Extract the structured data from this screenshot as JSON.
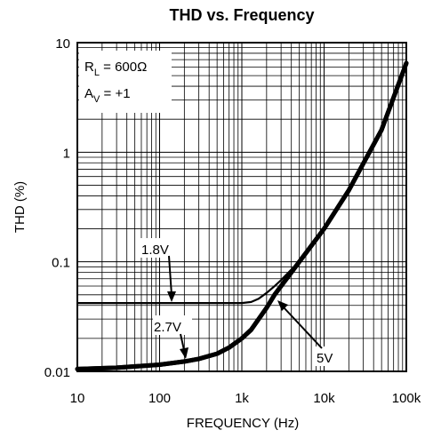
{
  "chart_data": {
    "type": "line",
    "title": "THD vs. Frequency",
    "xlabel": "FREQUENCY (Hz)",
    "ylabel": "THD (%)",
    "x_scale": "log",
    "y_scale": "log",
    "xlim": [
      10,
      100000
    ],
    "ylim": [
      0.01,
      10
    ],
    "grid": true,
    "x_ticks": [
      {
        "value": 10,
        "label": "10"
      },
      {
        "value": 100,
        "label": "100"
      },
      {
        "value": 1000,
        "label": "1k"
      },
      {
        "value": 10000,
        "label": "10k"
      },
      {
        "value": 100000,
        "label": "100k"
      }
    ],
    "y_ticks": [
      {
        "value": 0.01,
        "label": "0.01"
      },
      {
        "value": 0.1,
        "label": "0.1"
      },
      {
        "value": 1,
        "label": "1"
      },
      {
        "value": 10,
        "label": "10"
      }
    ],
    "conditions": {
      "rl": {
        "main": "R",
        "sub": "L",
        "rest": " = 600Ω"
      },
      "av": {
        "main": "A",
        "sub": "V",
        "rest": " = +1"
      }
    },
    "series": [
      {
        "name": "1.8V",
        "color": "#000000",
        "width": "thin",
        "points": [
          [
            10,
            0.042
          ],
          [
            100,
            0.042
          ],
          [
            1000,
            0.042
          ],
          [
            1300,
            0.043
          ],
          [
            1600,
            0.046
          ],
          [
            2000,
            0.052
          ],
          [
            2500,
            0.06
          ],
          [
            3000,
            0.068
          ],
          [
            4000,
            0.085
          ],
          [
            5000,
            0.1
          ],
          [
            7000,
            0.14
          ],
          [
            10000,
            0.2
          ],
          [
            20000,
            0.45
          ],
          [
            50000,
            1.6
          ],
          [
            100000,
            6.5
          ]
        ]
      },
      {
        "name": "2.7V",
        "color": "#000000",
        "width": "thick",
        "points": [
          [
            10,
            0.0105
          ],
          [
            30,
            0.0108
          ],
          [
            100,
            0.0115
          ],
          [
            200,
            0.0123
          ],
          [
            300,
            0.013
          ],
          [
            500,
            0.0145
          ],
          [
            700,
            0.0165
          ],
          [
            1000,
            0.02
          ],
          [
            1300,
            0.024
          ],
          [
            1600,
            0.03
          ],
          [
            2000,
            0.038
          ],
          [
            2500,
            0.05
          ],
          [
            3000,
            0.06
          ],
          [
            4000,
            0.08
          ],
          [
            5000,
            0.1
          ],
          [
            7000,
            0.14
          ],
          [
            10000,
            0.2
          ],
          [
            20000,
            0.45
          ],
          [
            50000,
            1.6
          ],
          [
            100000,
            6.5
          ]
        ]
      },
      {
        "name": "5V",
        "color": "#000000",
        "width": "thick",
        "points": [
          [
            10,
            0.0105
          ],
          [
            30,
            0.0108
          ],
          [
            100,
            0.0115
          ],
          [
            200,
            0.0123
          ],
          [
            300,
            0.013
          ],
          [
            500,
            0.0145
          ],
          [
            700,
            0.0165
          ],
          [
            1000,
            0.02
          ],
          [
            1300,
            0.024
          ],
          [
            1600,
            0.03
          ],
          [
            2000,
            0.038
          ],
          [
            2500,
            0.05
          ],
          [
            3000,
            0.06
          ],
          [
            4000,
            0.08
          ],
          [
            5000,
            0.1
          ],
          [
            7000,
            0.14
          ],
          [
            10000,
            0.2
          ],
          [
            20000,
            0.45
          ],
          [
            50000,
            1.6
          ],
          [
            100000,
            6.5
          ]
        ]
      }
    ],
    "annotations": [
      {
        "text": "1.8V",
        "series": "1.8V"
      },
      {
        "text": "2.7V",
        "series": "2.7V"
      },
      {
        "text": "5V",
        "series": "5V"
      }
    ]
  }
}
